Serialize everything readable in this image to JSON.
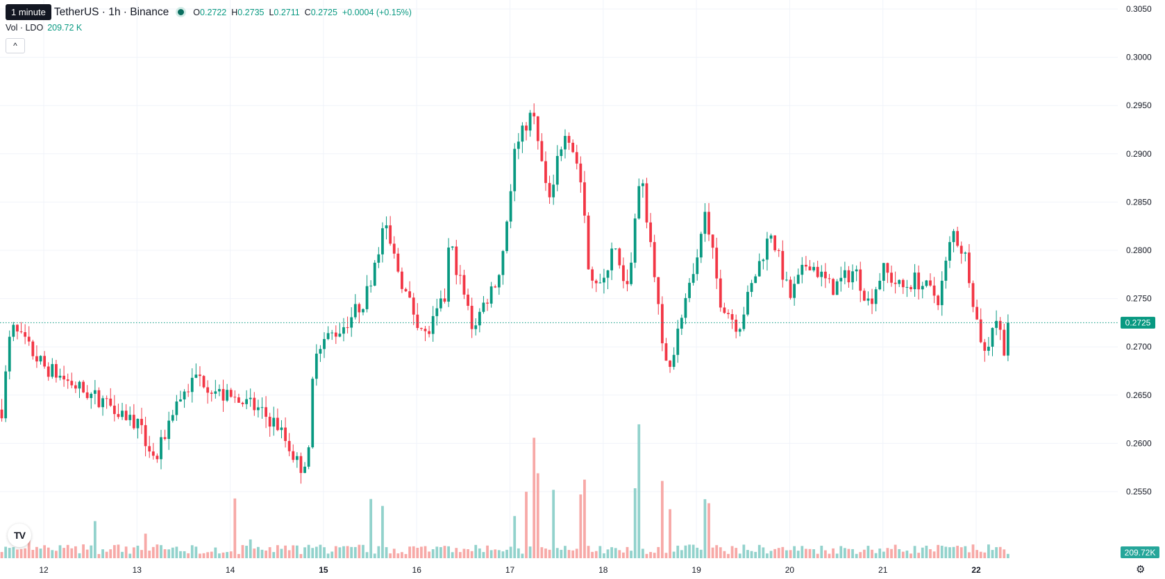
{
  "header": {
    "interval_tooltip": "1 minute",
    "symbol_title": "TetherUS · 1h · Binance",
    "open_label": "O",
    "open_value": "0.2722",
    "high_label": "H",
    "high_value": "0.2735",
    "low_label": "L",
    "low_value": "0.2711",
    "close_label": "C",
    "close_value": "0.2725",
    "change": "+0.0004 (+0.15%)"
  },
  "volume_legend": {
    "label": "Vol · LDO",
    "value": "209.72 K"
  },
  "collapse_icon": "chevron-up-icon",
  "logo_icon": "tradingview-logo-icon",
  "settings_icon": "gear-icon",
  "colors": {
    "up": "#089981",
    "down": "#f23645",
    "vol_up": "#92d2cc",
    "vol_down": "#f7a9a7",
    "grid": "#f0f3fa"
  },
  "chart_data": {
    "type": "candlestick",
    "y_ticks": [
      "0.3050",
      "0.3000",
      "0.2950",
      "0.2900",
      "0.2850",
      "0.2800",
      "0.2750",
      "0.2700",
      "0.2650",
      "0.2600",
      "0.2550"
    ],
    "x_ticks": [
      {
        "label": "12",
        "day": 12
      },
      {
        "label": "13",
        "day": 13
      },
      {
        "label": "14",
        "day": 14
      },
      {
        "label": "15",
        "day": 15,
        "bold": true
      },
      {
        "label": "16",
        "day": 16
      },
      {
        "label": "17",
        "day": 17
      },
      {
        "label": "18",
        "day": 18
      },
      {
        "label": "19",
        "day": 19
      },
      {
        "label": "20",
        "day": 20
      },
      {
        "label": "21",
        "day": 21
      },
      {
        "label": "22",
        "day": 22,
        "bold": true
      }
    ],
    "ylim": [
      0.2525,
      0.3055
    ],
    "last_price": "0.2725",
    "last_volume": "209.72K",
    "close_path": [
      [
        11.55,
        0.2635
      ],
      [
        11.65,
        0.272
      ],
      [
        12.0,
        0.268
      ],
      [
        12.5,
        0.265
      ],
      [
        12.75,
        0.264
      ],
      [
        13.0,
        0.262
      ],
      [
        13.2,
        0.258
      ],
      [
        13.4,
        0.264
      ],
      [
        13.65,
        0.267
      ],
      [
        13.9,
        0.265
      ],
      [
        14.2,
        0.264
      ],
      [
        14.5,
        0.262
      ],
      [
        14.75,
        0.2575
      ],
      [
        14.85,
        0.259
      ],
      [
        14.9,
        0.27
      ],
      [
        15.2,
        0.272
      ],
      [
        15.45,
        0.275
      ],
      [
        15.65,
        0.2825
      ],
      [
        15.9,
        0.275
      ],
      [
        16.1,
        0.271
      ],
      [
        16.3,
        0.275
      ],
      [
        16.35,
        0.281
      ],
      [
        16.6,
        0.272
      ],
      [
        16.9,
        0.278
      ],
      [
        17.05,
        0.29
      ],
      [
        17.25,
        0.295
      ],
      [
        17.4,
        0.285
      ],
      [
        17.6,
        0.293
      ],
      [
        17.75,
        0.288
      ],
      [
        17.85,
        0.278
      ],
      [
        18.0,
        0.276
      ],
      [
        18.1,
        0.281
      ],
      [
        18.25,
        0.275
      ],
      [
        18.4,
        0.288
      ],
      [
        18.55,
        0.278
      ],
      [
        18.65,
        0.268
      ],
      [
        18.75,
        0.269
      ],
      [
        18.85,
        0.274
      ],
      [
        19.0,
        0.278
      ],
      [
        19.1,
        0.284
      ],
      [
        19.25,
        0.275
      ],
      [
        19.45,
        0.272
      ],
      [
        19.65,
        0.278
      ],
      [
        19.8,
        0.282
      ],
      [
        20.0,
        0.275
      ],
      [
        20.2,
        0.279
      ],
      [
        20.45,
        0.276
      ],
      [
        20.7,
        0.278
      ],
      [
        20.85,
        0.2745
      ],
      [
        21.0,
        0.278
      ],
      [
        21.2,
        0.276
      ],
      [
        21.35,
        0.277
      ],
      [
        21.6,
        0.275
      ],
      [
        21.75,
        0.282
      ],
      [
        21.9,
        0.279
      ],
      [
        22.0,
        0.273
      ],
      [
        22.1,
        0.269
      ],
      [
        22.2,
        0.2735
      ],
      [
        22.3,
        0.27
      ],
      [
        22.35,
        0.2725
      ]
    ],
    "volume_peaks": [
      [
        11.85,
        40
      ],
      [
        12.55,
        60
      ],
      [
        13.1,
        40
      ],
      [
        14.05,
        100
      ],
      [
        14.2,
        30
      ],
      [
        15.5,
        95
      ],
      [
        15.65,
        80
      ],
      [
        17.05,
        70
      ],
      [
        17.18,
        100
      ],
      [
        17.25,
        175
      ],
      [
        17.3,
        130
      ],
      [
        17.45,
        110
      ],
      [
        17.75,
        100
      ],
      [
        17.8,
        120
      ],
      [
        18.35,
        110
      ],
      [
        18.38,
        220
      ],
      [
        18.62,
        125
      ],
      [
        18.72,
        80
      ],
      [
        19.1,
        100
      ],
      [
        19.15,
        85
      ]
    ]
  }
}
